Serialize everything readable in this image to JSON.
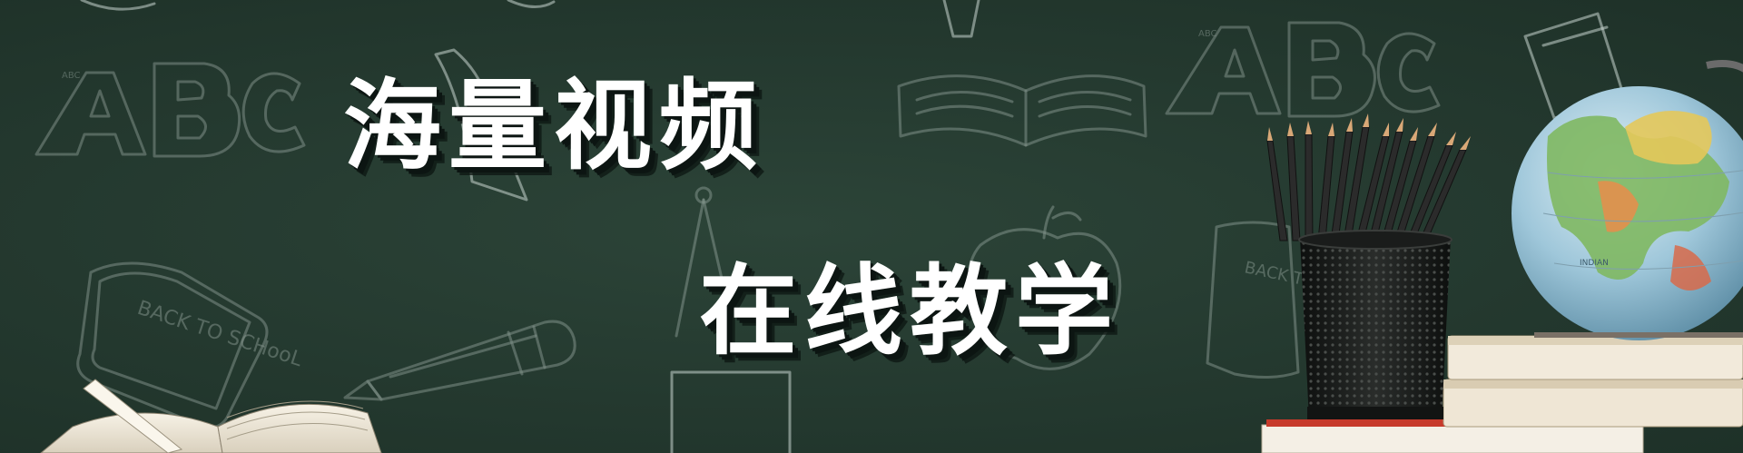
{
  "banner": {
    "headline_line1": "海量视频",
    "headline_line2": "在线教学",
    "chalk_labels": {
      "abc_left": "ABC",
      "abc_right": "ABC",
      "back_to_school_left": "BACK TO SCHooL",
      "back_to_school_right": "BACK TO SCHOOL",
      "globe_ocean": "INDIAN"
    }
  },
  "colors": {
    "chalkboard": "#24392f",
    "headline_text": "#ffffff",
    "headline_shadow": "#0c1512",
    "chalk_lines": "#c9d6cf"
  },
  "icons": [
    "abc-letters-doodle",
    "open-book-doodle",
    "pencil-doodle",
    "back-to-school-sign-doodle",
    "compass-doodle",
    "apple-doodle",
    "pencil-holder-photo",
    "globe-photo",
    "book-stack-photo",
    "open-book-photo"
  ]
}
